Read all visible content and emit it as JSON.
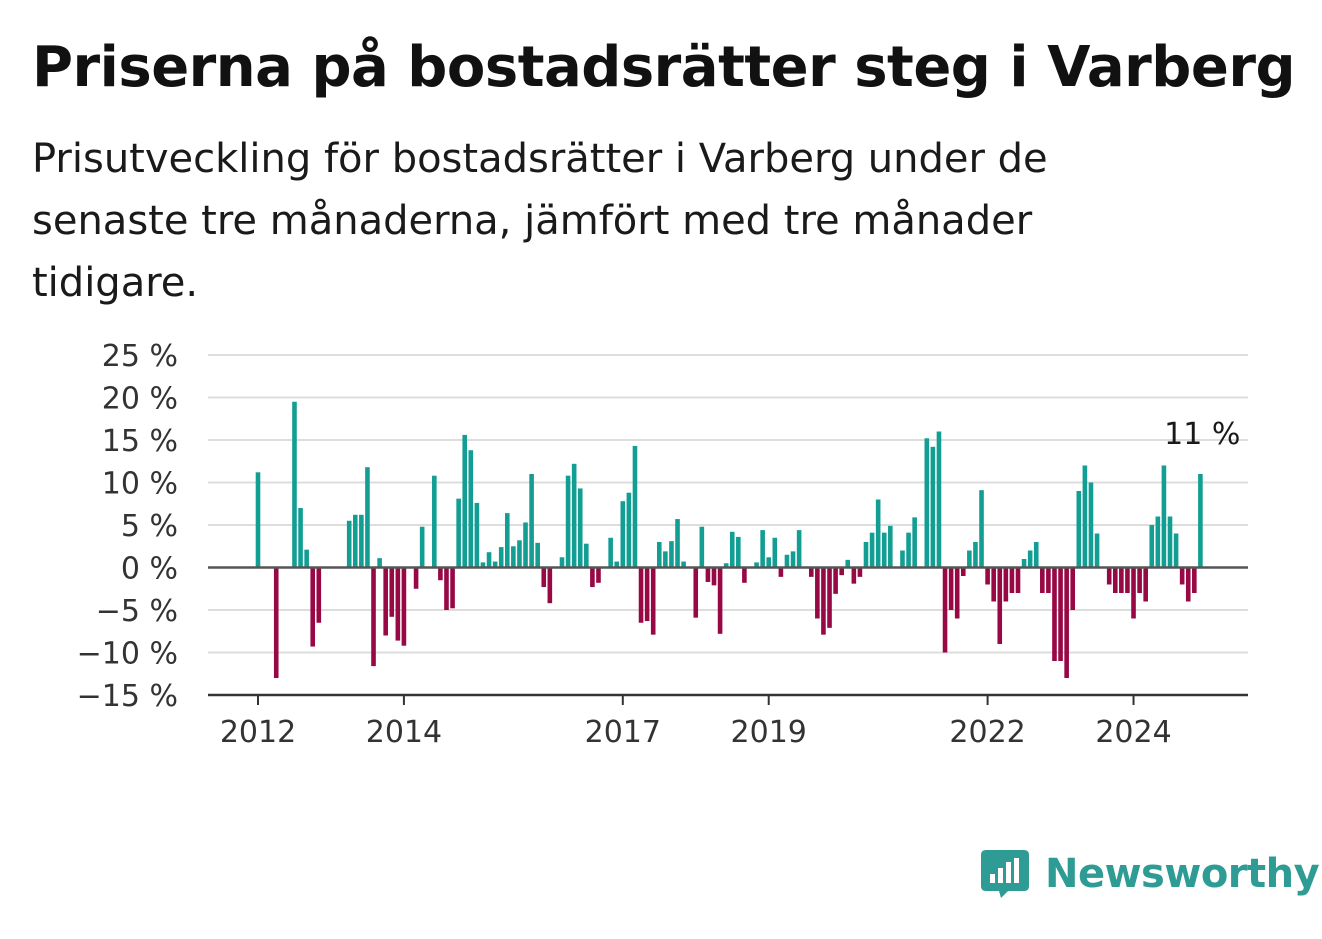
{
  "header": {
    "title": "Priserna på bostadsrätter steg i Varberg",
    "subtitle": "Prisutveckling för bostadsrätter i Varberg under de senaste tre månaderna, jämfört med tre månader tidigare."
  },
  "brand": {
    "name": "Newsworthy",
    "icon": "newsworthy-logo-icon",
    "color": "#2e9c95"
  },
  "colors": {
    "positive": "#139e94",
    "negative": "#980845",
    "grid": "#dddddd",
    "axis": "#555555"
  },
  "chart_data": {
    "type": "bar",
    "title": "Priserna på bostadsrätter steg i Varberg",
    "ylabel": "",
    "xlabel": "",
    "ylim": [
      -15,
      25
    ],
    "yticks": [
      25,
      20,
      15,
      10,
      5,
      0,
      -5,
      -10,
      -15
    ],
    "ytick_labels": [
      "25 %",
      "20 %",
      "15 %",
      "10 %",
      "5 %",
      "0 %",
      "−5 %",
      "−10 %",
      "−15 %"
    ],
    "xticks": [
      {
        "label": "2012",
        "index": 0
      },
      {
        "label": "2014",
        "index": 24
      },
      {
        "label": "2017",
        "index": 60
      },
      {
        "label": "2019",
        "index": 84
      },
      {
        "label": "2022",
        "index": 120
      },
      {
        "label": "2024",
        "index": 144
      }
    ],
    "grid": true,
    "annotation": {
      "text": "11 %",
      "index": 155
    },
    "values": [
      11.2,
      0,
      0,
      -13,
      0,
      0,
      19.5,
      7,
      2.1,
      -9.3,
      -6.5,
      0,
      0,
      0,
      0,
      5.5,
      6.2,
      6.2,
      11.8,
      -11.6,
      1.1,
      -8,
      -5.8,
      -8.6,
      -9.2,
      0,
      -2.5,
      4.8,
      0,
      10.8,
      -1.5,
      -5,
      -4.8,
      8.1,
      15.6,
      13.8,
      7.6,
      0.6,
      1.8,
      0.7,
      2.4,
      6.4,
      2.5,
      3.2,
      5.3,
      11,
      2.9,
      -2.3,
      -4.2,
      0,
      1.2,
      10.8,
      12.2,
      9.3,
      2.8,
      -2.3,
      -1.8,
      0,
      3.5,
      0.7,
      7.8,
      8.8,
      14.3,
      -6.5,
      -6.3,
      -7.9,
      3,
      1.9,
      3.1,
      5.7,
      0.7,
      0,
      -5.9,
      4.8,
      -1.7,
      -2.1,
      -7.8,
      0.5,
      4.2,
      3.6,
      -1.8,
      0,
      0.6,
      4.4,
      1.2,
      3.5,
      -1.1,
      1.5,
      1.9,
      4.4,
      0,
      -1.1,
      -6,
      -7.9,
      -7.1,
      -3.1,
      -0.9,
      0.9,
      -1.9,
      -1.1,
      3,
      4.1,
      8,
      4.1,
      4.9,
      0,
      2,
      4.1,
      5.9,
      0,
      15.2,
      14.2,
      16,
      -10,
      -5,
      -6,
      -1,
      2,
      3,
      9.1,
      -2,
      -4,
      -9,
      -4,
      -3,
      -3,
      1,
      2,
      3,
      -3,
      -3,
      -11,
      -11,
      -13,
      -5,
      9,
      12,
      10,
      4,
      0,
      -2,
      -3,
      -3,
      -3,
      -6,
      -3,
      -4,
      5,
      6,
      12,
      6,
      4,
      -2,
      -4,
      -3,
      11
    ]
  }
}
